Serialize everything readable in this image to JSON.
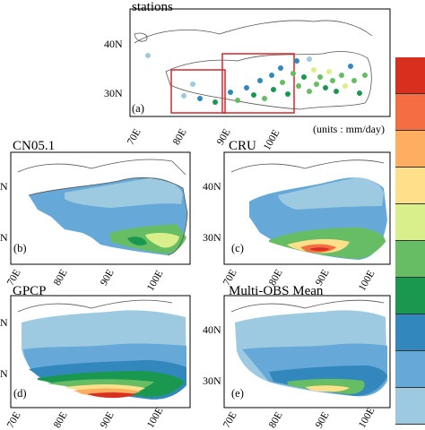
{
  "panels": {
    "a": {
      "title": "stations",
      "label": "(a)",
      "yticks": [
        "40N",
        "30N"
      ],
      "xticks": [
        "70E",
        "80E",
        "90E",
        "100E"
      ]
    },
    "b": {
      "title": "CN05.1",
      "label": "(b)",
      "yticks": [
        "N",
        "N"
      ],
      "xticks": [
        "70E",
        "80E",
        "90E",
        "100E"
      ]
    },
    "c": {
      "title": "CRU",
      "label": "(c)",
      "yticks": [
        "40N",
        "30N"
      ],
      "xticks": [
        "70E",
        "80E",
        "90E",
        "100E"
      ]
    },
    "d": {
      "title": "GPCP",
      "label": "(d)",
      "yticks": [
        "N",
        "N"
      ],
      "xticks": [
        "70E",
        "80E",
        "90E",
        "100E"
      ]
    },
    "e": {
      "title": "Multi-OBS Mean",
      "label": "(e)",
      "yticks": [
        "40N",
        "30N"
      ],
      "xticks": [
        "70E",
        "80E",
        "90E",
        "100E"
      ]
    }
  },
  "units": "(units : mm/day)",
  "colorbar": {
    "colors": [
      "#d7301f",
      "#f46d43",
      "#fdae61",
      "#fee08b",
      "#d9ef8b",
      "#66bd63",
      "#1a9850",
      "#3288bd",
      "#66a9d8",
      "#9ecae1"
    ]
  }
}
